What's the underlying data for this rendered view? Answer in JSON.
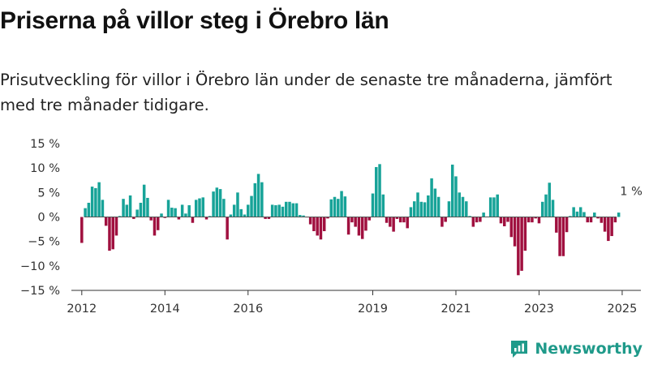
{
  "title": "Priserna på villor steg i Örebro län",
  "subtitle": "Prisutveckling för villor i Örebro län under de senaste tre månaderna, jämfört med tre månader tidigare.",
  "brand": "Newsworthy",
  "colors": {
    "positive": "#17a398",
    "negative": "#a0103f",
    "text": "#1a1a1a",
    "axis": "#333333"
  },
  "chart_data": {
    "type": "bar",
    "ylim": [
      -15,
      15
    ],
    "yticks": [
      15,
      10,
      5,
      0,
      -5,
      -10,
      -15
    ],
    "ytick_labels": [
      "15 %",
      "10 %",
      "5 %",
      "0 %",
      "−5 %",
      "−10 %",
      "−15 %"
    ],
    "xticks": [
      2012,
      2014,
      2016,
      2019,
      2021,
      2023,
      2025
    ],
    "xlim": [
      2011.75,
      2025.45
    ],
    "start": "2012-01",
    "annotation": {
      "text": "1 %",
      "x": 2025.1,
      "y": 1
    },
    "values": [
      -5.3,
      1.8,
      2.9,
      6.2,
      5.9,
      7.1,
      3.5,
      -1.8,
      -6.9,
      -6.6,
      -3.8,
      0.2,
      3.7,
      2.5,
      4.4,
      -0.4,
      1.5,
      2.9,
      6.6,
      3.9,
      -0.7,
      -3.8,
      -2.7,
      0.7,
      -0.2,
      3.5,
      1.9,
      1.8,
      -0.5,
      2.5,
      0.7,
      2.4,
      -1.2,
      3.5,
      3.8,
      4.0,
      -0.5,
      0.2,
      5.2,
      6.0,
      5.7,
      3.7,
      -4.6,
      0.5,
      2.5,
      5.0,
      1.6,
      0.5,
      2.5,
      4.3,
      6.9,
      8.8,
      7.1,
      -0.4,
      -0.4,
      2.5,
      2.4,
      2.5,
      2.1,
      3.1,
      3.1,
      2.8,
      2.8,
      0.4,
      0.3,
      -0.1,
      -1.5,
      -2.9,
      -3.8,
      -4.6,
      -2.9,
      -0.3,
      3.6,
      4.1,
      3.7,
      5.3,
      4.2,
      -3.6,
      -1.1,
      -2.0,
      -3.8,
      -4.5,
      -2.8,
      -0.7,
      4.8,
      10.2,
      10.8,
      4.6,
      -1.2,
      -2.0,
      -3.0,
      -0.4,
      -1.1,
      -1.1,
      -2.3,
      2.0,
      3.2,
      5.0,
      3.1,
      3.0,
      4.4,
      7.9,
      5.8,
      4.1,
      -2.0,
      -1.0,
      3.2,
      10.7,
      8.3,
      5.0,
      4.1,
      3.2,
      0.2,
      -2.0,
      -1.1,
      -1.0,
      0.9,
      0.1,
      4.0,
      4.0,
      4.6,
      -1.3,
      -1.9,
      -1.0,
      -4.1,
      -6.0,
      -11.9,
      -11.0,
      -6.9,
      -1.1,
      -1.1,
      -0.3,
      -1.3,
      3.1,
      4.6,
      7.0,
      3.5,
      -3.2,
      -8.0,
      -8.0,
      -3.1,
      0.2,
      2.0,
      1.1,
      2.0,
      1.0,
      -1.1,
      -1.1,
      0.9,
      -0.3,
      -1.2,
      -3.0,
      -4.9,
      -3.9,
      -1.1,
      0.9
    ]
  }
}
